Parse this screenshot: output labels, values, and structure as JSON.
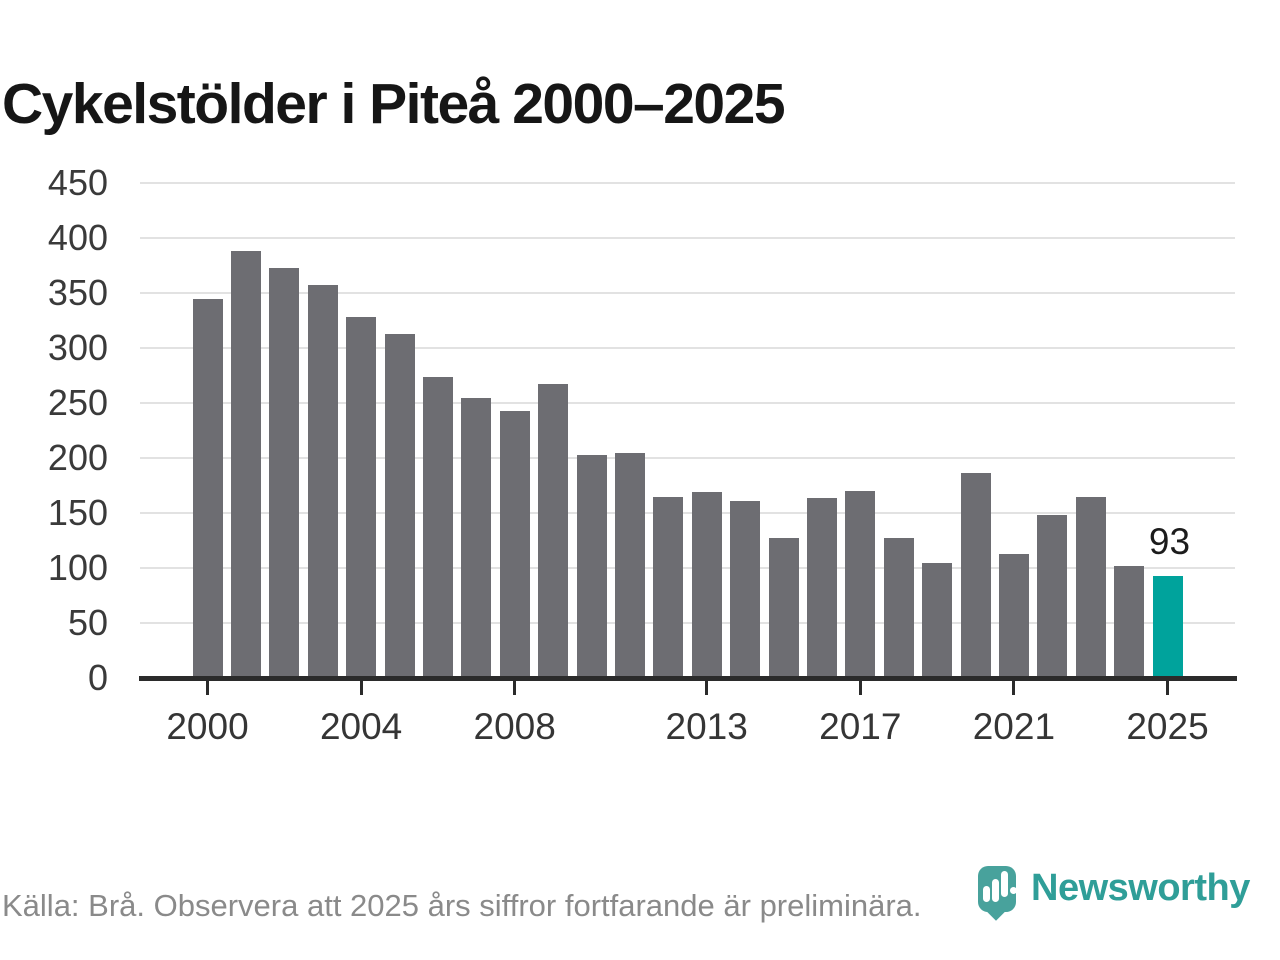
{
  "title": "Cykelstölder i Piteå 2000–2025",
  "chart_data": {
    "type": "bar",
    "title": "Cykelstölder i Piteå 2000–2025",
    "xlabel": "",
    "ylabel": "",
    "categories": [
      2000,
      2001,
      2002,
      2003,
      2004,
      2005,
      2006,
      2007,
      2008,
      2009,
      2010,
      2011,
      2012,
      2013,
      2014,
      2015,
      2016,
      2017,
      2018,
      2019,
      2020,
      2021,
      2022,
      2023,
      2024,
      2025
    ],
    "values": [
      345,
      388,
      373,
      357,
      328,
      313,
      274,
      255,
      243,
      267,
      203,
      205,
      165,
      169,
      161,
      127,
      164,
      170,
      127,
      105,
      186,
      113,
      148,
      165,
      102,
      93
    ],
    "ylim": [
      0,
      450
    ],
    "yticks": [
      0,
      50,
      100,
      150,
      200,
      250,
      300,
      350,
      400,
      450
    ],
    "xtick_years": [
      2000,
      2004,
      2008,
      2013,
      2017,
      2021,
      2025
    ],
    "xtick_labels": [
      "2000",
      "2004",
      "2008",
      "2013",
      "2017",
      "2021",
      "2025"
    ],
    "grid": true,
    "legend": "none",
    "bar_color": "#6d6d72",
    "highlight_color": "#00a39c",
    "highlight_year": 2025,
    "annotation": {
      "year": 2025,
      "label": "93"
    }
  },
  "footer": {
    "source_text": "Källa: Brå. Observera att 2025 års siffror fortfarande är preliminära."
  },
  "logo": {
    "text": "Newsworthy",
    "text_color": "#2f9e98",
    "pin_color": "#48a29c"
  }
}
